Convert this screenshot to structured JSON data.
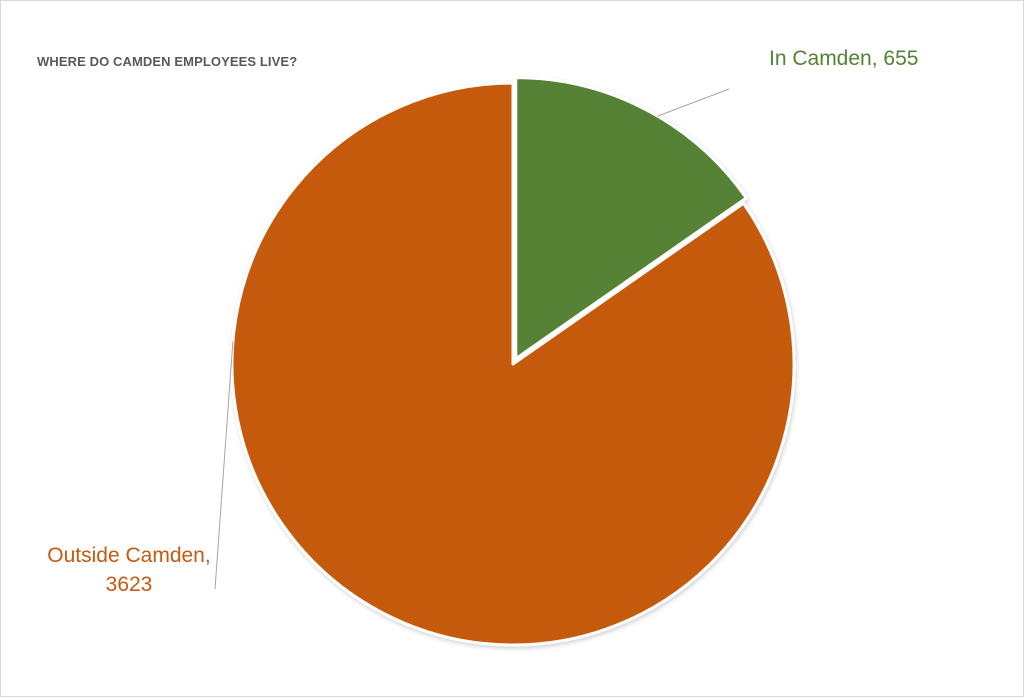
{
  "chart_data": {
    "type": "pie",
    "title": "WHERE DO CAMDEN EMPLOYEES LIVE?",
    "slices": [
      {
        "name": "In Camden",
        "value": 655,
        "label_line1": "In Camden, 655",
        "color": "#548235"
      },
      {
        "name": "Outside Camden",
        "value": 3623,
        "label_line1": "Outside Camden,",
        "label_line2": "3623",
        "color": "#c55a11"
      }
    ],
    "start_angle_deg": 0,
    "direction": "clockwise",
    "exploded_slice": "In Camden",
    "legend": "none",
    "data_label_style": "category and value, outside with leader lines"
  }
}
